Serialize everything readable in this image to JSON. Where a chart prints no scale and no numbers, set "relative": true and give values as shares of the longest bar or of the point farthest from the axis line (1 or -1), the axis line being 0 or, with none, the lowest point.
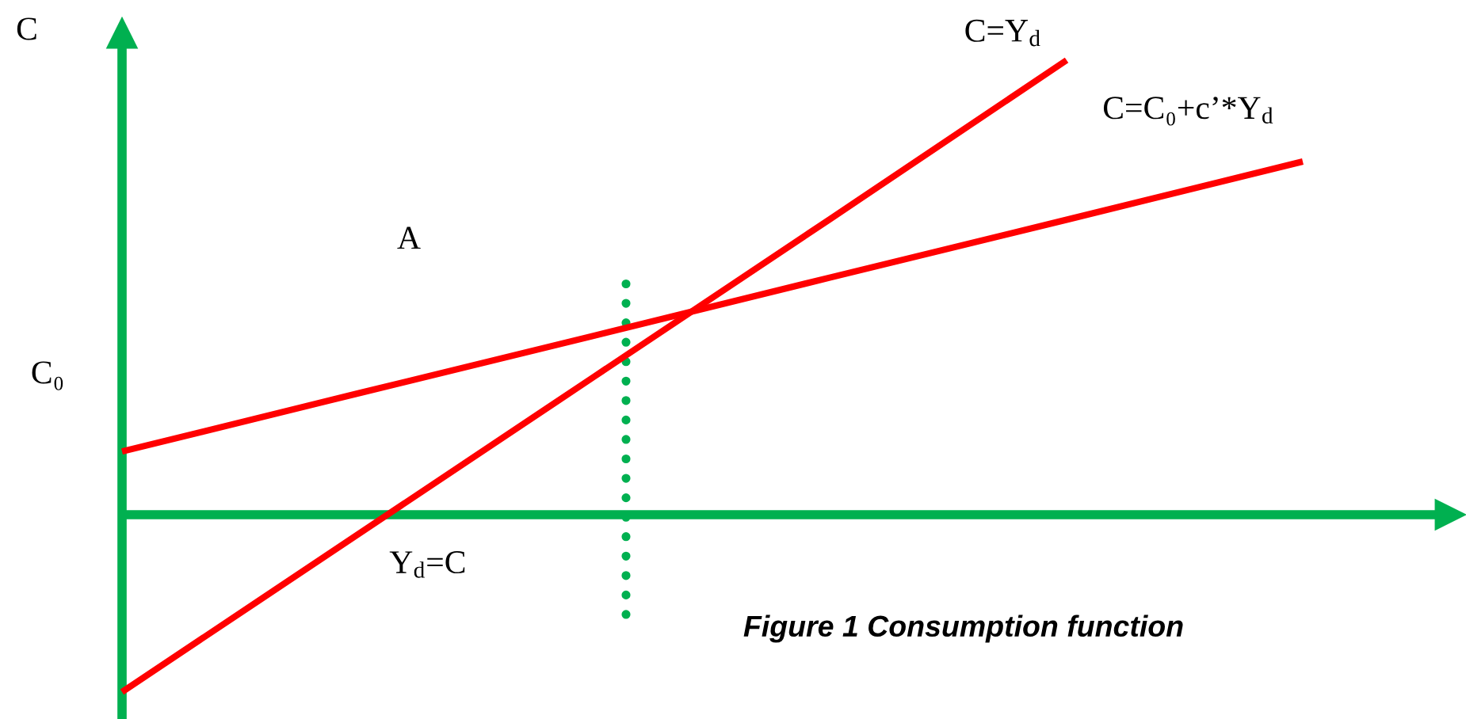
{
  "chart_data": {
    "type": "line",
    "relative": true,
    "ylabel": "C",
    "categories": [
      null,
      null,
      null,
      null,
      null,
      null
    ],
    "series": [
      {
        "name": "C=Y$_{d}$",
        "color": "#ff0000",
        "values": [
          -0.39,
          -0.043,
          0.304,
          0.651,
          1,
          null
        ]
      },
      {
        "name": "C=C₀+c’*Y$_{d}$",
        "color": "#ff0000",
        "values": [
          0.139,
          0.267,
          0.394,
          0.522,
          0.649,
          0.777
        ]
      }
    ],
    "ref_lines": [
      {
        "axis": "y",
        "value": 0,
        "color": "#00b050"
      }
    ],
    "annotations": [
      "A",
      "C₀",
      "Y$_{d}$=C",
      "Figure 1 Consumption function"
    ]
  }
}
